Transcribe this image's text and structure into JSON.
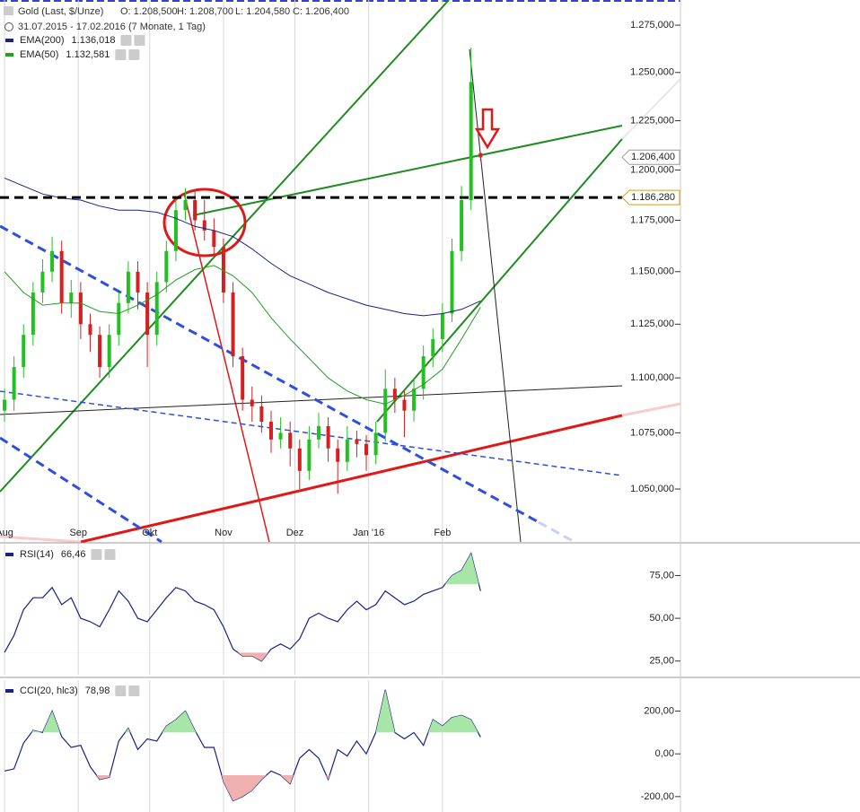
{
  "chart_data": [
    {
      "type": "candlestick",
      "title": "Gold (Last, $/Unze)",
      "ohlc_labels": [
        "O: 1.208,500",
        "H: 1.208,700",
        "L: 1.204,580",
        "C: 1.206,400"
      ],
      "subtitle": "31.07.2015 - 17.02.2016 (7 Monate, 1 Tag)",
      "x": [
        1,
        5,
        9,
        13,
        17,
        21,
        25,
        29,
        33,
        37,
        41,
        45,
        49,
        53,
        57,
        61,
        65,
        69,
        73,
        77,
        81,
        85,
        89,
        93,
        97,
        101,
        105,
        109,
        113,
        117,
        121,
        125,
        129,
        133,
        137,
        141,
        145,
        149,
        153,
        157,
        161,
        165,
        169,
        173,
        177,
        181,
        185,
        189,
        193,
        197,
        201
      ],
      "open": [
        1.085,
        1.09,
        1.105,
        1.12,
        1.14,
        1.15,
        1.16,
        1.135,
        1.14,
        1.125,
        1.12,
        1.105,
        1.12,
        1.135,
        1.15,
        1.14,
        1.12,
        1.145,
        1.16,
        1.18,
        1.185,
        1.175,
        1.17,
        1.162,
        1.14,
        1.11,
        1.09,
        1.087,
        1.08,
        1.072,
        1.075,
        1.068,
        1.058,
        1.072,
        1.078,
        1.068,
        1.062,
        1.072,
        1.07,
        1.065,
        1.075,
        1.095,
        1.09,
        1.085,
        1.095,
        1.11,
        1.118,
        1.13,
        1.16,
        1.185,
        1.2085
      ],
      "high": [
        1.095,
        1.11,
        1.125,
        1.145,
        1.156,
        1.167,
        1.165,
        1.146,
        1.145,
        1.13,
        1.124,
        1.125,
        1.14,
        1.155,
        1.155,
        1.145,
        1.15,
        1.165,
        1.186,
        1.191,
        1.19,
        1.185,
        1.176,
        1.166,
        1.145,
        1.114,
        1.096,
        1.092,
        1.085,
        1.082,
        1.08,
        1.072,
        1.078,
        1.084,
        1.082,
        1.072,
        1.078,
        1.076,
        1.074,
        1.08,
        1.104,
        1.1,
        1.094,
        1.1,
        1.115,
        1.123,
        1.135,
        1.166,
        1.192,
        1.263,
        1.2087
      ],
      "low": [
        1.08,
        1.085,
        1.1,
        1.115,
        1.135,
        1.145,
        1.13,
        1.128,
        1.118,
        1.112,
        1.1,
        1.1,
        1.115,
        1.13,
        1.132,
        1.105,
        1.115,
        1.14,
        1.155,
        1.175,
        1.17,
        1.165,
        1.158,
        1.135,
        1.105,
        1.085,
        1.08,
        1.075,
        1.066,
        1.068,
        1.06,
        1.05,
        1.054,
        1.068,
        1.062,
        1.048,
        1.058,
        1.064,
        1.058,
        1.061,
        1.071,
        1.084,
        1.073,
        1.08,
        1.09,
        1.105,
        1.112,
        1.126,
        1.155,
        1.18,
        1.2046
      ],
      "close": [
        1.09,
        1.105,
        1.12,
        1.14,
        1.15,
        1.16,
        1.135,
        1.14,
        1.125,
        1.12,
        1.105,
        1.12,
        1.135,
        1.15,
        1.14,
        1.12,
        1.145,
        1.16,
        1.18,
        1.185,
        1.175,
        1.17,
        1.162,
        1.14,
        1.11,
        1.09,
        1.087,
        1.08,
        1.072,
        1.075,
        1.068,
        1.058,
        1.072,
        1.078,
        1.068,
        1.062,
        1.072,
        1.07,
        1.065,
        1.075,
        1.095,
        1.09,
        1.085,
        1.095,
        1.11,
        1.118,
        1.13,
        1.16,
        1.185,
        1.245,
        1.2064
      ],
      "up_color": "#22c022",
      "down_color": "#d42020",
      "series": [
        {
          "name": "EMA(200)",
          "value_label": "1.136,018",
          "color": "#1a237e",
          "x": [
            1,
            9,
            17,
            25,
            33,
            41,
            49,
            57,
            65,
            73,
            81,
            89,
            97,
            105,
            113,
            121,
            129,
            137,
            145,
            153,
            161,
            169,
            177,
            185,
            193,
            201
          ],
          "values": [
            1.196,
            1.192,
            1.188,
            1.186,
            1.185,
            1.182,
            1.18,
            1.18,
            1.179,
            1.176,
            1.172,
            1.17,
            1.167,
            1.161,
            1.154,
            1.148,
            1.144,
            1.14,
            1.137,
            1.134,
            1.132,
            1.13,
            1.129,
            1.13,
            1.132,
            1.136
          ]
        },
        {
          "name": "EMA(50)",
          "value_label": "1.132,581",
          "color": "#22a022",
          "x": [
            1,
            9,
            17,
            25,
            33,
            41,
            49,
            57,
            65,
            73,
            81,
            89,
            97,
            105,
            113,
            121,
            129,
            137,
            145,
            153,
            161,
            169,
            177,
            185,
            193,
            201
          ],
          "values": [
            1.15,
            1.14,
            1.134,
            1.135,
            1.135,
            1.131,
            1.13,
            1.134,
            1.139,
            1.146,
            1.151,
            1.153,
            1.148,
            1.14,
            1.128,
            1.118,
            1.109,
            1.1,
            1.094,
            1.09,
            1.088,
            1.092,
            1.097,
            1.104,
            1.118,
            1.133
          ]
        }
      ],
      "hline": {
        "value": 1.18628,
        "label": "1.186,280"
      },
      "last_price": {
        "value": 1.2064,
        "label": "1.206,400"
      },
      "log_scale": true,
      "xlim": [
        -0.9,
        285
      ],
      "xticks": [
        {
          "value": 1,
          "label": "Aug"
        },
        {
          "value": 32,
          "label": "Sep"
        },
        {
          "value": 62,
          "label": "Okt"
        },
        {
          "value": 93,
          "label": "Nov"
        },
        {
          "value": 123,
          "label": "Dez"
        },
        {
          "value": 154,
          "label": "Jan '16"
        },
        {
          "value": 185,
          "label": "Feb"
        }
      ],
      "ylim": [
        1.027,
        1.2885
      ],
      "yticks": [
        {
          "value": 1.05,
          "label": "1.050,000"
        },
        {
          "value": 1.075,
          "label": "1.075,000"
        },
        {
          "value": 1.1,
          "label": "1.100,000"
        },
        {
          "value": 1.125,
          "label": "1.125,000"
        },
        {
          "value": 1.15,
          "label": "1.150,000"
        },
        {
          "value": 1.175,
          "label": "1.175,000"
        },
        {
          "value": 1.2,
          "label": "1.200,000"
        },
        {
          "value": 1.225,
          "label": "1.225,000"
        },
        {
          "value": 1.25,
          "label": "1.250,000"
        },
        {
          "value": 1.275,
          "label": "1.275,000"
        }
      ]
    },
    {
      "type": "line",
      "title": "RSI(14)",
      "value_label": "66,46",
      "color": "#1a237e",
      "x": [
        1,
        5,
        9,
        13,
        17,
        21,
        25,
        29,
        33,
        37,
        41,
        45,
        49,
        53,
        57,
        61,
        65,
        69,
        73,
        77,
        81,
        85,
        89,
        93,
        97,
        101,
        105,
        109,
        113,
        117,
        121,
        125,
        129,
        133,
        137,
        141,
        145,
        149,
        153,
        157,
        161,
        165,
        169,
        173,
        177,
        181,
        185,
        189,
        193,
        197,
        201
      ],
      "values": [
        30,
        40,
        55,
        62,
        62,
        68,
        58,
        62,
        50,
        48,
        45,
        55,
        66,
        60,
        50,
        48,
        55,
        62,
        68,
        66,
        60,
        58,
        55,
        45,
        32,
        28,
        28,
        25,
        32,
        35,
        32,
        38,
        50,
        53,
        50,
        48,
        55,
        60,
        55,
        58,
        66,
        62,
        58,
        60,
        64,
        66,
        68,
        75,
        78,
        88,
        66
      ],
      "bands": [
        30,
        70
      ],
      "xlim": [
        -0.9,
        285
      ],
      "xticks": [
        1,
        32,
        62,
        93,
        123,
        154,
        185
      ],
      "ylim": [
        17,
        93.6
      ],
      "yticks": [
        {
          "value": 25,
          "label": "25,00"
        },
        {
          "value": 50,
          "label": "50,00"
        },
        {
          "value": 75,
          "label": "75,00"
        }
      ]
    },
    {
      "type": "line",
      "title": "CCI(20, hlc3)",
      "value_label": "78,98",
      "color": "#1a237e",
      "x": [
        1,
        5,
        9,
        13,
        17,
        21,
        25,
        29,
        33,
        37,
        41,
        45,
        49,
        53,
        57,
        61,
        65,
        69,
        73,
        77,
        81,
        85,
        89,
        93,
        97,
        101,
        105,
        109,
        113,
        117,
        121,
        125,
        129,
        133,
        137,
        141,
        145,
        149,
        153,
        157,
        161,
        165,
        169,
        173,
        177,
        181,
        185,
        189,
        193,
        197,
        201
      ],
      "values": [
        -80,
        -70,
        50,
        110,
        100,
        200,
        80,
        30,
        40,
        -60,
        -120,
        -110,
        60,
        120,
        20,
        70,
        60,
        130,
        160,
        200,
        110,
        30,
        30,
        -130,
        -220,
        -200,
        -170,
        -120,
        -80,
        -100,
        -140,
        -20,
        20,
        -20,
        -120,
        20,
        -10,
        60,
        0,
        100,
        300,
        100,
        70,
        100,
        40,
        160,
        130,
        170,
        180,
        160,
        79
      ],
      "bands": [
        -100,
        100
      ],
      "xlim": [
        -0.9,
        285
      ],
      "xticks": [
        1,
        32,
        62,
        93,
        123,
        154,
        185
      ],
      "ylim": [
        -272,
        345
      ],
      "yticks": [
        {
          "value": -200,
          "label": "-200,00"
        },
        {
          "value": 0,
          "label": "0,00"
        },
        {
          "value": 200,
          "label": "200,00"
        }
      ]
    }
  ]
}
